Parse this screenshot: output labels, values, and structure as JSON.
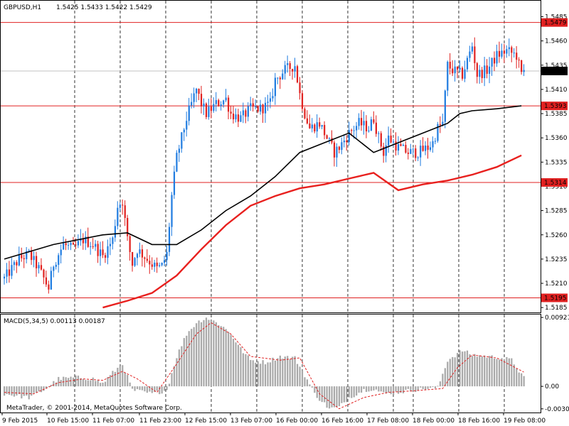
{
  "header": {
    "symbol": "GBPUSD,H1",
    "ohlc": "1.5425 1.5433 1.5422 1.5429"
  },
  "macd_panel": {
    "label": "MACD(5,34,5) 0.00113 0.00187"
  },
  "footer": {
    "copyright": "MetaTrader, © 2001-2014, MetaQuotes Software Corp."
  },
  "colors": {
    "bull": "#1e7be0",
    "bear": "#e0201e",
    "ma_fast": "#000000",
    "ma_slow": "#e8201e",
    "level": "#e02020",
    "grid": "#000000",
    "macd_bar": "#a8a8a8",
    "macd_signal": "#e02020",
    "current_bg": "#000000"
  },
  "chart_data": [
    {
      "type": "candlestick",
      "title": "GBPUSD,H1",
      "y_ticks": [
        "1.5485",
        "1.5460",
        "1.5435",
        "1.5410",
        "1.5385",
        "1.5360",
        "1.5335",
        "1.5310",
        "1.5285",
        "1.5260",
        "1.5235",
        "1.5210",
        "1.5185"
      ],
      "y_tick_values": [
        1.5485,
        1.546,
        1.5435,
        1.541,
        1.5385,
        1.536,
        1.5335,
        1.531,
        1.5285,
        1.526,
        1.5235,
        1.521,
        1.5185
      ],
      "ylim": [
        1.518,
        1.55
      ],
      "x_labels": [
        "9 Feb 2015",
        "10 Feb 15:00",
        "11 Feb 07:00",
        "11 Feb 23:00",
        "12 Feb 15:00",
        "13 Feb 07:00",
        "16 Feb 00:00",
        "16 Feb 16:00",
        "17 Feb 08:00",
        "18 Feb 00:00",
        "18 Feb 16:00",
        "19 Feb 08:00"
      ],
      "horizontal_levels": [
        {
          "value": 1.5479,
          "label": "1.5479"
        },
        {
          "value": 1.5393,
          "label": "1.5393"
        },
        {
          "value": 1.5314,
          "label": "1.5314"
        },
        {
          "value": 1.5195,
          "label": "1.5195"
        }
      ],
      "current_price": {
        "value": 1.5429,
        "label": "1.5429"
      },
      "close_path": [
        [
          0,
          1.5215
        ],
        [
          6,
          1.5235
        ],
        [
          10,
          1.524
        ],
        [
          14,
          1.5225
        ],
        [
          18,
          1.5205
        ],
        [
          20,
          1.523
        ],
        [
          24,
          1.525
        ],
        [
          28,
          1.5245
        ],
        [
          32,
          1.5255
        ],
        [
          36,
          1.525
        ],
        [
          40,
          1.5238
        ],
        [
          44,
          1.5255
        ],
        [
          46,
          1.529
        ],
        [
          48,
          1.5295
        ],
        [
          50,
          1.5255
        ],
        [
          52,
          1.523
        ],
        [
          54,
          1.5245
        ],
        [
          58,
          1.5235
        ],
        [
          62,
          1.5225
        ],
        [
          64,
          1.5228
        ],
        [
          66,
          1.524
        ],
        [
          68,
          1.53
        ],
        [
          70,
          1.534
        ],
        [
          72,
          1.536
        ],
        [
          74,
          1.538
        ],
        [
          76,
          1.5395
        ],
        [
          78,
          1.541
        ],
        [
          80,
          1.5395
        ],
        [
          82,
          1.5385
        ],
        [
          86,
          1.5395
        ],
        [
          90,
          1.54
        ],
        [
          92,
          1.5385
        ],
        [
          96,
          1.538
        ],
        [
          100,
          1.539
        ],
        [
          104,
          1.539
        ],
        [
          108,
          1.5395
        ],
        [
          110,
          1.542
        ],
        [
          114,
          1.543
        ],
        [
          118,
          1.5435
        ],
        [
          120,
          1.5405
        ],
        [
          122,
          1.5385
        ],
        [
          124,
          1.537
        ],
        [
          128,
          1.5375
        ],
        [
          130,
          1.5365
        ],
        [
          134,
          1.5345
        ],
        [
          136,
          1.535
        ],
        [
          140,
          1.5365
        ],
        [
          144,
          1.5375
        ],
        [
          148,
          1.537
        ],
        [
          150,
          1.538
        ],
        [
          152,
          1.536
        ],
        [
          154,
          1.5345
        ],
        [
          156,
          1.536
        ],
        [
          160,
          1.535
        ],
        [
          164,
          1.5345
        ],
        [
          168,
          1.5345
        ],
        [
          172,
          1.535
        ],
        [
          174,
          1.5355
        ],
        [
          176,
          1.537
        ],
        [
          178,
          1.5375
        ],
        [
          180,
          1.5435
        ],
        [
          182,
          1.543
        ],
        [
          186,
          1.5425
        ],
        [
          188,
          1.544
        ],
        [
          190,
          1.5455
        ],
        [
          192,
          1.5425
        ],
        [
          196,
          1.543
        ],
        [
          200,
          1.5445
        ],
        [
          204,
          1.545
        ],
        [
          208,
          1.5445
        ],
        [
          210,
          1.5425
        ],
        [
          211,
          1.5429
        ]
      ],
      "series": [
        {
          "name": "",
          "color": "#000000",
          "points": [
            [
              0,
              1.5235
            ],
            [
              20,
              1.525
            ],
            [
              40,
              1.526
            ],
            [
              50,
              1.5262
            ],
            [
              60,
              1.525
            ],
            [
              70,
              1.525
            ],
            [
              80,
              1.5265
            ],
            [
              90,
              1.5285
            ],
            [
              100,
              1.53
            ],
            [
              110,
              1.532
            ],
            [
              120,
              1.5345
            ],
            [
              130,
              1.5355
            ],
            [
              140,
              1.5365
            ],
            [
              150,
              1.5345
            ],
            [
              160,
              1.5355
            ],
            [
              170,
              1.5365
            ],
            [
              180,
              1.5375
            ],
            [
              185,
              1.5385
            ],
            [
              190,
              1.5388
            ],
            [
              200,
              1.539
            ],
            [
              210,
              1.5393
            ]
          ]
        },
        {
          "name": "",
          "color": "#e8201e",
          "points": [
            [
              40,
              1.5185
            ],
            [
              50,
              1.5192
            ],
            [
              60,
              1.52
            ],
            [
              70,
              1.5218
            ],
            [
              80,
              1.5245
            ],
            [
              90,
              1.527
            ],
            [
              100,
              1.529
            ],
            [
              110,
              1.53
            ],
            [
              120,
              1.5308
            ],
            [
              130,
              1.5312
            ],
            [
              140,
              1.5318
            ],
            [
              150,
              1.5324
            ],
            [
              160,
              1.5306
            ],
            [
              170,
              1.5312
            ],
            [
              180,
              1.5316
            ],
            [
              190,
              1.5322
            ],
            [
              200,
              1.533
            ],
            [
              210,
              1.5342
            ]
          ]
        }
      ]
    },
    {
      "type": "bar",
      "title": "MACD(5,34,5) 0.00113 0.00187",
      "y_ticks": [
        "0.00921",
        "0.00",
        "-0.00301"
      ],
      "y_tick_values": [
        0.00921,
        0.0,
        -0.00301
      ],
      "ylim": [
        -0.0035,
        0.0096
      ],
      "histogram_path": [
        [
          0,
          -0.001
        ],
        [
          10,
          -0.0015
        ],
        [
          16,
          -0.0005
        ],
        [
          22,
          0.001
        ],
        [
          30,
          0.0012
        ],
        [
          36,
          0.001
        ],
        [
          40,
          0.0004
        ],
        [
          44,
          0.0018
        ],
        [
          48,
          0.003
        ],
        [
          52,
          -0.0005
        ],
        [
          60,
          -0.001
        ],
        [
          66,
          -0.0005
        ],
        [
          70,
          0.004
        ],
        [
          74,
          0.007
        ],
        [
          78,
          0.0085
        ],
        [
          82,
          0.0092
        ],
        [
          88,
          0.0082
        ],
        [
          92,
          0.007
        ],
        [
          96,
          0.005
        ],
        [
          100,
          0.0035
        ],
        [
          106,
          0.0032
        ],
        [
          112,
          0.004
        ],
        [
          118,
          0.0038
        ],
        [
          122,
          0.0015
        ],
        [
          126,
          -0.001
        ],
        [
          132,
          -0.003
        ],
        [
          136,
          -0.0028
        ],
        [
          140,
          -0.0015
        ],
        [
          146,
          -0.0005
        ],
        [
          150,
          -0.0003
        ],
        [
          154,
          -0.001
        ],
        [
          160,
          -0.0008
        ],
        [
          166,
          -0.0005
        ],
        [
          172,
          -0.0003
        ],
        [
          176,
          -0.0002
        ],
        [
          180,
          0.0035
        ],
        [
          186,
          0.0048
        ],
        [
          190,
          0.0042
        ],
        [
          196,
          0.004
        ],
        [
          202,
          0.0038
        ],
        [
          206,
          0.0035
        ],
        [
          211,
          0.0011
        ]
      ],
      "signal_path": [
        [
          0,
          -0.0008
        ],
        [
          12,
          -0.001
        ],
        [
          22,
          0.0005
        ],
        [
          32,
          0.001
        ],
        [
          40,
          0.0008
        ],
        [
          48,
          0.002
        ],
        [
          54,
          0.001
        ],
        [
          62,
          -0.0008
        ],
        [
          70,
          0.003
        ],
        [
          78,
          0.007
        ],
        [
          84,
          0.0085
        ],
        [
          92,
          0.007
        ],
        [
          100,
          0.004
        ],
        [
          112,
          0.0035
        ],
        [
          120,
          0.0038
        ],
        [
          128,
          -0.001
        ],
        [
          136,
          -0.003
        ],
        [
          146,
          -0.0015
        ],
        [
          156,
          -0.0008
        ],
        [
          166,
          -0.0006
        ],
        [
          178,
          -0.0003
        ],
        [
          184,
          0.0025
        ],
        [
          190,
          0.0042
        ],
        [
          200,
          0.0038
        ],
        [
          211,
          0.0019
        ]
      ]
    }
  ]
}
